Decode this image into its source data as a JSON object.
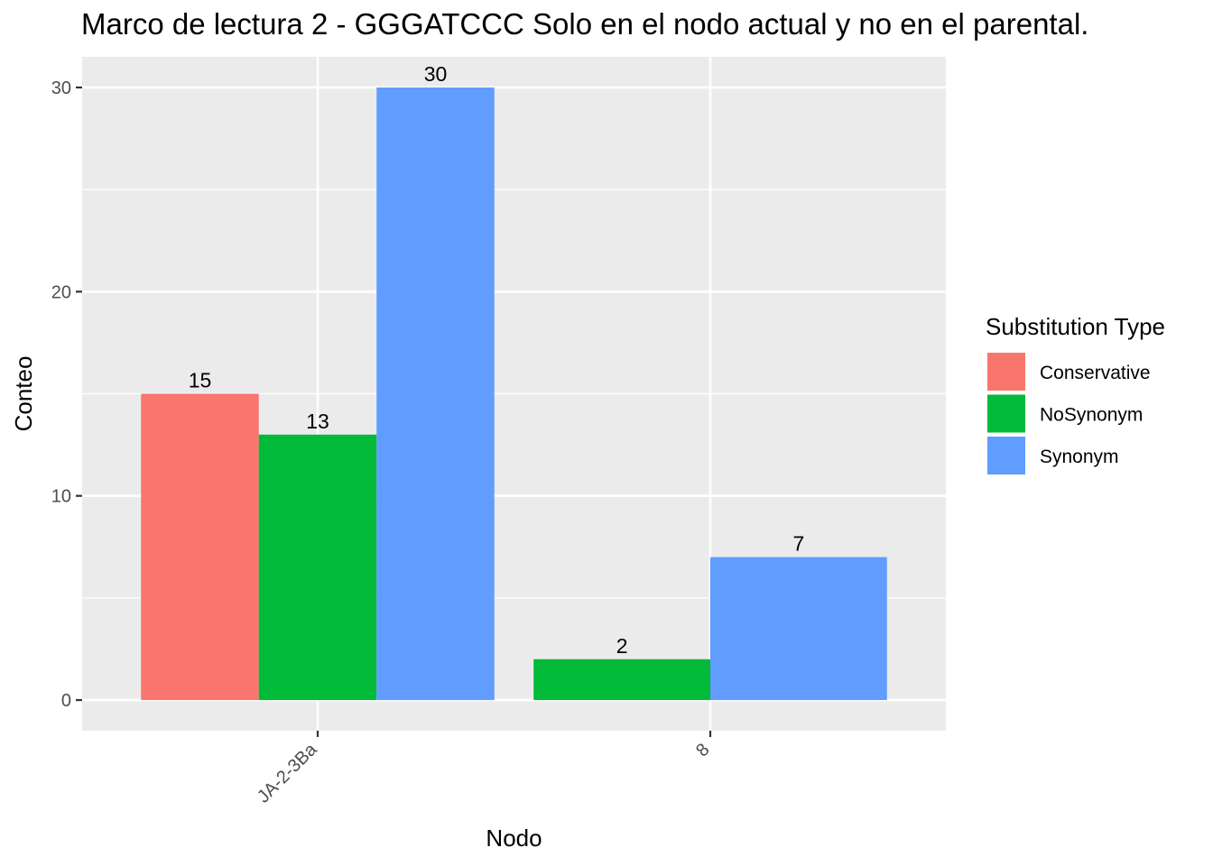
{
  "chart_data": {
    "type": "bar",
    "title": "Marco de lectura 2 - GGGATCCC Solo en el nodo actual y no en el parental.",
    "xlabel": "Nodo",
    "ylabel": "Conteo",
    "categories": [
      "JA-2-3Ba",
      "8"
    ],
    "ylim": [
      -1.5,
      31.5
    ],
    "yticks": [
      0,
      10,
      20,
      30
    ],
    "grid": true,
    "legend_title": "Substitution Type",
    "legend_position": "right",
    "series": [
      {
        "name": "Conservative",
        "color": "#F8766D",
        "values": [
          15,
          null
        ]
      },
      {
        "name": "NoSynonym",
        "color": "#00BA38",
        "values": [
          13,
          2
        ]
      },
      {
        "name": "Synonym",
        "color": "#619CFF",
        "values": [
          30,
          7
        ]
      }
    ],
    "panel_background": "#EBEBEB",
    "grid_color": "#FFFFFF"
  }
}
